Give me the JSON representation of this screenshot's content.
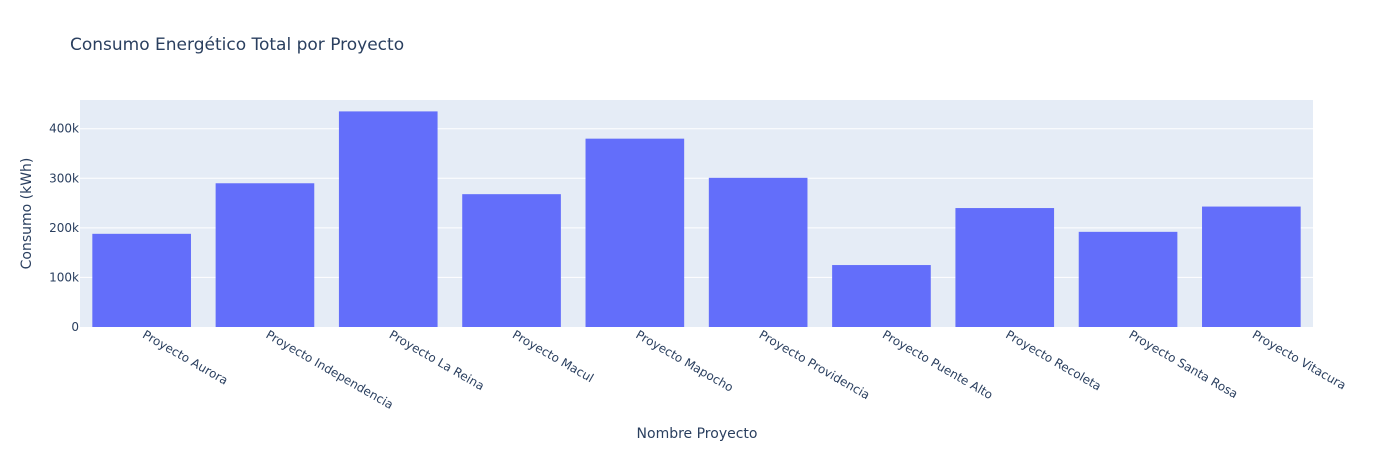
{
  "chart_data": {
    "type": "bar",
    "title": "Consumo Energético Total por Proyecto",
    "xlabel": "Nombre Proyecto",
    "ylabel": "Consumo (kWh)",
    "categories": [
      "Proyecto Aurora",
      "Proyecto Independencia",
      "Proyecto La Reina",
      "Proyecto Macul",
      "Proyecto Mapocho",
      "Proyecto Providencia",
      "Proyecto Puente Alto",
      "Proyecto Recoleta",
      "Proyecto Santa Rosa",
      "Proyecto Vitacura"
    ],
    "values": [
      188000,
      290000,
      435000,
      268000,
      380000,
      301000,
      125000,
      240000,
      192000,
      243000
    ],
    "ylim": [
      0,
      458000
    ],
    "yticks": [
      0,
      100000,
      200000,
      300000,
      400000
    ],
    "ytick_labels": [
      "0",
      "100k",
      "200k",
      "300k",
      "400k"
    ],
    "grid": true,
    "legend": "none",
    "colors": {
      "bar": "#636efa",
      "plot_bg": "#e5ecf6",
      "grid": "#ffffff",
      "text": "#2a3f5f"
    }
  }
}
